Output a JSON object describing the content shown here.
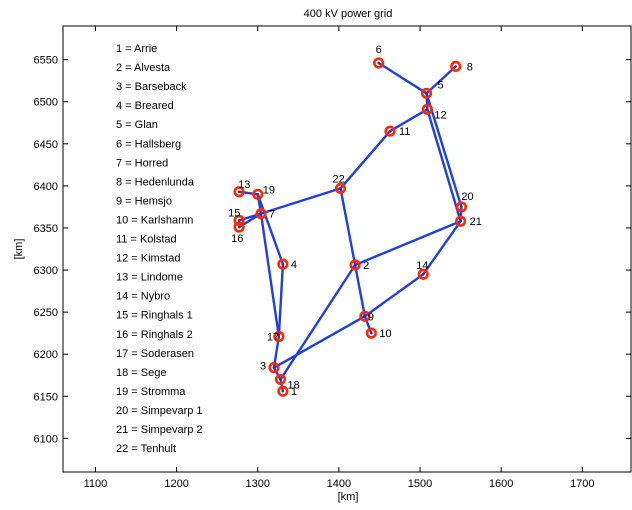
{
  "chart_data": {
    "type": "scatter",
    "title": "400 kV power grid",
    "xlabel": "[km]",
    "ylabel": "[km]",
    "xlim": [
      1060,
      1760
    ],
    "ylim": [
      6060,
      6590
    ],
    "xticks": [
      1100,
      1200,
      1300,
      1400,
      1500,
      1600,
      1700
    ],
    "yticks": [
      6100,
      6150,
      6200,
      6250,
      6300,
      6350,
      6400,
      6450,
      6500,
      6550
    ],
    "grid": false,
    "colors": {
      "edge": "#1f3fe0",
      "marker": "#ff2a00",
      "marker_center": "#2a2aa8"
    },
    "legend": [
      "1 = Arrie",
      "2 = Alvesta",
      "3 = Barseback",
      "4 = Breared",
      "5 = Glan",
      "6 = Hallsberg",
      "7 = Horred",
      "8 = Hedenlunda",
      "9 = Hemsjo",
      "10 = Karlshamn",
      "11 = Kolstad",
      "12 = Kimstad",
      "13 = Lindome",
      "14 = Nybro",
      "15 = Ringhals 1",
      "16 = Ringhals 2",
      "17 = Soderasen",
      "18 = Sege",
      "19 = Stromma",
      "20 = Simpevarp 1",
      "21 = Simpevarp 2",
      "22 = Tenhult"
    ],
    "nodes": [
      {
        "id": 1,
        "label": "1",
        "x": 1331,
        "y": 6156
      },
      {
        "id": 2,
        "label": "2",
        "x": 1420,
        "y": 6306
      },
      {
        "id": 3,
        "label": "3",
        "x": 1320,
        "y": 6184
      },
      {
        "id": 4,
        "label": "4",
        "x": 1331,
        "y": 6307
      },
      {
        "id": 5,
        "label": "5",
        "x": 1508,
        "y": 6510
      },
      {
        "id": 6,
        "label": "6",
        "x": 1449,
        "y": 6546
      },
      {
        "id": 7,
        "label": "7",
        "x": 1304,
        "y": 6367
      },
      {
        "id": 8,
        "label": "8",
        "x": 1544,
        "y": 6542
      },
      {
        "id": 9,
        "label": "9",
        "x": 1432,
        "y": 6245
      },
      {
        "id": 10,
        "label": "10",
        "x": 1440,
        "y": 6225
      },
      {
        "id": 11,
        "label": "11",
        "x": 1463,
        "y": 6465
      },
      {
        "id": 12,
        "label": "12",
        "x": 1509,
        "y": 6491
      },
      {
        "id": 13,
        "label": "13",
        "x": 1277,
        "y": 6393
      },
      {
        "id": 14,
        "label": "14",
        "x": 1504,
        "y": 6295
      },
      {
        "id": 15,
        "label": "15",
        "x": 1277,
        "y": 6359
      },
      {
        "id": 16,
        "label": "16",
        "x": 1277,
        "y": 6351
      },
      {
        "id": 17,
        "label": "17",
        "x": 1326,
        "y": 6221
      },
      {
        "id": 18,
        "label": "18",
        "x": 1328,
        "y": 6170
      },
      {
        "id": 19,
        "label": "19",
        "x": 1300,
        "y": 6390
      },
      {
        "id": 20,
        "label": "20",
        "x": 1551,
        "y": 6375
      },
      {
        "id": 21,
        "label": "21",
        "x": 1550,
        "y": 6358
      },
      {
        "id": 22,
        "label": "22",
        "x": 1402,
        "y": 6397
      }
    ],
    "edges": [
      [
        6,
        5
      ],
      [
        8,
        5
      ],
      [
        5,
        12
      ],
      [
        12,
        11
      ],
      [
        11,
        22
      ],
      [
        5,
        20
      ],
      [
        12,
        21
      ],
      [
        20,
        21
      ],
      [
        21,
        2
      ],
      [
        21,
        14
      ],
      [
        14,
        9
      ],
      [
        9,
        10
      ],
      [
        9,
        3
      ],
      [
        3,
        17
      ],
      [
        3,
        18
      ],
      [
        18,
        1
      ],
      [
        18,
        2
      ],
      [
        2,
        22
      ],
      [
        2,
        9
      ],
      [
        22,
        7
      ],
      [
        7,
        17
      ],
      [
        7,
        19
      ],
      [
        19,
        13
      ],
      [
        19,
        4
      ],
      [
        4,
        17
      ],
      [
        7,
        15
      ],
      [
        7,
        16
      ]
    ]
  }
}
